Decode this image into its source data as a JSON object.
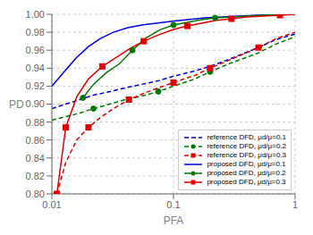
{
  "chart_data": {
    "type": "line",
    "x_label": "PFA",
    "y_label": "PD",
    "log": "x",
    "grid": true,
    "legend": "lower right",
    "xlim": [
      0.01,
      1.0
    ],
    "xticks": [
      0.01,
      0.1,
      1
    ],
    "ylim": [
      0.8,
      1.0
    ],
    "yticks": [
      {
        "value": 0.8,
        "label": "0.80"
      },
      0.82,
      0.84,
      0.86,
      0.88,
      {
        "value": 0.9,
        "label": "0.90"
      },
      0.92,
      0.94,
      0.96,
      0.98,
      {
        "value": 1.0,
        "label": "1.00"
      }
    ],
    "series": [
      {
        "name": "reference DFD, μd/μ=0.1",
        "color": "#0000DD",
        "line_style": "dashed",
        "x": [
          0.01,
          0.013,
          0.017,
          0.022,
          0.03,
          0.04,
          0.055,
          0.075,
          0.1,
          0.15,
          0.2,
          0.3,
          0.5,
          0.7,
          1.0
        ],
        "values": [
          0.895,
          0.9,
          0.905,
          0.91,
          0.914,
          0.918,
          0.922,
          0.926,
          0.931,
          0.937,
          0.942,
          0.951,
          0.963,
          0.972,
          0.978
        ]
      },
      {
        "name": "reference DFD, μd/μ=0.2",
        "color": "#007700",
        "line_style": "dashed",
        "marker": "circle",
        "x": [
          0.01,
          0.013,
          0.017,
          0.022,
          0.03,
          0.04,
          0.055,
          0.075,
          0.1,
          0.15,
          0.2,
          0.3,
          0.5,
          0.7,
          1.0
        ],
        "values": [
          0.882,
          0.886,
          0.89,
          0.895,
          0.9,
          0.905,
          0.909,
          0.914,
          0.92,
          0.928,
          0.936,
          0.946,
          0.957,
          0.967,
          0.975
        ],
        "marker_x": [
          0.022,
          0.075,
          0.2
        ],
        "marker_values": [
          0.895,
          0.914,
          0.936
        ]
      },
      {
        "name": "reference DFD, μd/μ=0.3",
        "color": "#DD0000",
        "line_style": "dashed",
        "marker": "square",
        "x": [
          0.011,
          0.013,
          0.016,
          0.02,
          0.025,
          0.033,
          0.043,
          0.057,
          0.075,
          0.1,
          0.15,
          0.2,
          0.3,
          0.5,
          0.7,
          1.0
        ],
        "values": [
          0.8,
          0.835,
          0.86,
          0.874,
          0.885,
          0.896,
          0.905,
          0.912,
          0.918,
          0.924,
          0.932,
          0.94,
          0.95,
          0.963,
          0.973,
          0.98
        ],
        "marker_x": [
          0.011,
          0.02,
          0.043,
          0.1,
          0.2,
          0.5
        ],
        "marker_values": [
          0.8,
          0.874,
          0.905,
          0.924,
          0.94,
          0.963
        ]
      },
      {
        "name": "proposed DFD, μd/μ=0.1",
        "color": "#0000DD",
        "line_style": "solid",
        "x": [
          0.01,
          0.013,
          0.016,
          0.02,
          0.025,
          0.032,
          0.042,
          0.055,
          0.072,
          0.095,
          0.13,
          0.18,
          0.25,
          0.35,
          0.5,
          0.7,
          1.0
        ],
        "values": [
          0.92,
          0.938,
          0.952,
          0.964,
          0.973,
          0.98,
          0.985,
          0.988,
          0.99,
          0.992,
          0.994,
          0.996,
          0.997,
          0.998,
          0.999,
          1.0,
          1.0
        ]
      },
      {
        "name": "proposed DFD, μd/μ=0.2",
        "color": "#007700",
        "line_style": "solid",
        "marker": "circle",
        "x": [
          0.018,
          0.022,
          0.028,
          0.036,
          0.046,
          0.06,
          0.078,
          0.1,
          0.13,
          0.17,
          0.22,
          0.3,
          0.4,
          0.55,
          0.75,
          1.0
        ],
        "values": [
          0.907,
          0.922,
          0.935,
          0.945,
          0.96,
          0.974,
          0.983,
          0.988,
          0.991,
          0.994,
          0.996,
          0.997,
          0.998,
          0.999,
          1.0,
          1.0
        ],
        "marker_x": [
          0.018,
          0.046,
          0.1,
          0.22,
          0.75
        ],
        "marker_values": [
          0.907,
          0.96,
          0.988,
          0.996,
          1.0
        ]
      },
      {
        "name": "proposed DFD, μd/μ=0.3",
        "color": "#DD0000",
        "line_style": "solid",
        "marker": "square",
        "x": [
          0.011,
          0.013,
          0.016,
          0.02,
          0.026,
          0.034,
          0.044,
          0.057,
          0.075,
          0.1,
          0.13,
          0.17,
          0.22,
          0.3,
          0.4,
          0.55,
          0.75,
          1.0
        ],
        "values": [
          0.8,
          0.874,
          0.908,
          0.928,
          0.942,
          0.952,
          0.962,
          0.97,
          0.977,
          0.983,
          0.987,
          0.99,
          0.993,
          0.995,
          0.997,
          0.998,
          0.999,
          1.0
        ],
        "marker_x": [
          0.013,
          0.026,
          0.057,
          0.13,
          0.3,
          0.75
        ],
        "marker_values": [
          0.874,
          0.942,
          0.97,
          0.987,
          0.995,
          0.999
        ]
      }
    ]
  }
}
